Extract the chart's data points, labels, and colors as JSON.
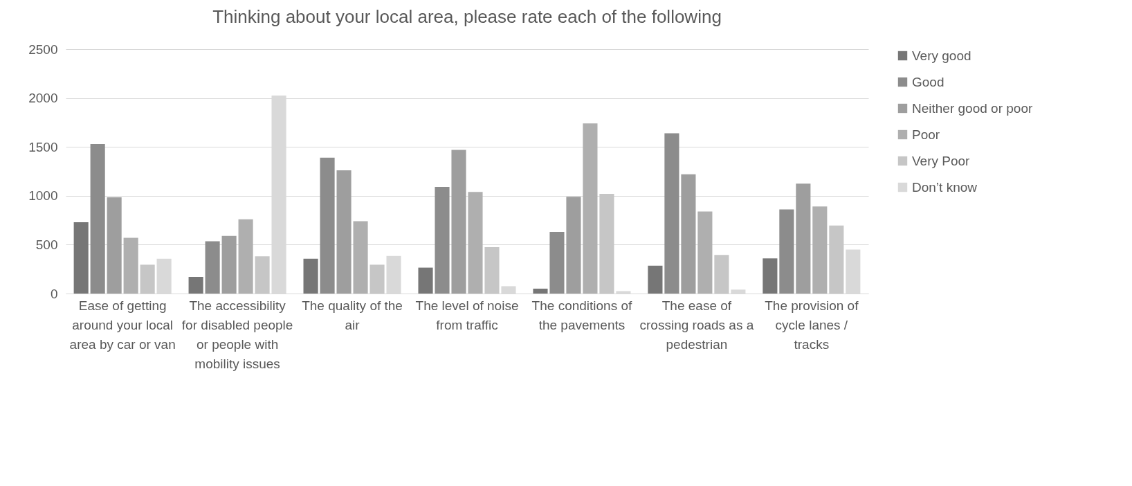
{
  "chart_data": {
    "type": "bar",
    "title": "Thinking about your local area, please rate each of the following",
    "categories": [
      "Ease of getting around your local area by car or van",
      "The accessibility for disabled people or people with mobility issues",
      "The quality of the air",
      "The level of noise from traffic",
      "The conditions of the pavements",
      "The ease of crossing roads as a pedestrian",
      "The provision of cycle lanes / tracks"
    ],
    "series": [
      {
        "name": "Very good",
        "color": "#767676",
        "values": [
          730,
          170,
          355,
          265,
          50,
          285,
          360
        ]
      },
      {
        "name": "Good",
        "color": "#8c8c8c",
        "values": [
          1530,
          535,
          1390,
          1090,
          630,
          1640,
          860
        ]
      },
      {
        "name": "Neither good or poor",
        "color": "#9e9e9e",
        "values": [
          985,
          590,
          1260,
          1470,
          990,
          1220,
          1125
        ]
      },
      {
        "name": "Poor",
        "color": "#afafaf",
        "values": [
          570,
          760,
          740,
          1040,
          1740,
          840,
          890
        ]
      },
      {
        "name": "Very Poor",
        "color": "#c6c6c6",
        "values": [
          295,
          380,
          295,
          475,
          1020,
          395,
          695
        ]
      },
      {
        "name": "Don’t know",
        "color": "#d9d9d9",
        "values": [
          355,
          2025,
          385,
          75,
          25,
          40,
          450
        ]
      }
    ],
    "ylim": [
      0,
      2500
    ],
    "yticks": [
      0,
      500,
      1000,
      1500,
      2000,
      2500
    ],
    "grid": "y",
    "legend": "right"
  }
}
